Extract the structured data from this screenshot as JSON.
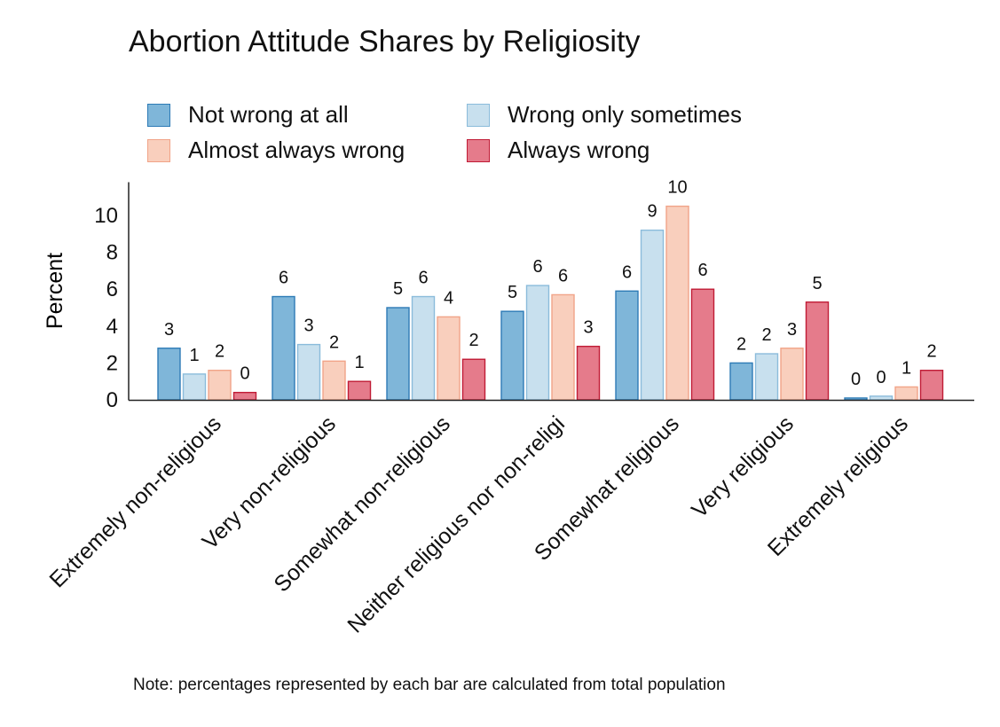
{
  "chart_data": {
    "type": "bar",
    "title": "Abortion Attitude Shares by Religiosity",
    "xlabel": "",
    "ylabel": "Percent",
    "ylim": [
      0,
      11.8
    ],
    "yticks": [
      0,
      2,
      4,
      6,
      8,
      10
    ],
    "legend_position": "top",
    "note": "Note: percentages represented by each bar are calculated from total population",
    "categories": [
      "Extremely non-religious",
      "Very non-religious",
      "Somewhat non-religious",
      "Neither religious nor non-religi",
      "Somewhat religious",
      "Very religious",
      "Extremely religious"
    ],
    "series": [
      {
        "name": "Not wrong at all",
        "color": "#7fb6d9",
        "stroke": "#2d7bb6",
        "values": [
          2.8,
          5.6,
          5.0,
          4.8,
          5.9,
          2.0,
          0.1
        ],
        "labels": [
          "3",
          "6",
          "5",
          "5",
          "6",
          "2",
          "0"
        ]
      },
      {
        "name": "Wrong only sometimes",
        "color": "#c8e0ee",
        "stroke": "#8bbcdb",
        "values": [
          1.4,
          3.0,
          5.6,
          6.2,
          9.2,
          2.5,
          0.2
        ],
        "labels": [
          "1",
          "3",
          "6",
          "6",
          "9",
          "2",
          "0"
        ]
      },
      {
        "name": "Almost always wrong",
        "color": "#f9cfbd",
        "stroke": "#f1a488",
        "values": [
          1.6,
          2.1,
          4.5,
          5.7,
          10.5,
          2.8,
          0.7
        ],
        "labels": [
          "2",
          "2",
          "4",
          "6",
          "10",
          "3",
          "1"
        ]
      },
      {
        "name": "Always wrong",
        "color": "#e57b8b",
        "stroke": "#c01c36",
        "values": [
          0.4,
          1.0,
          2.2,
          2.9,
          6.0,
          5.3,
          1.6
        ],
        "labels": [
          "0",
          "1",
          "2",
          "3",
          "6",
          "5",
          "2"
        ]
      }
    ]
  }
}
